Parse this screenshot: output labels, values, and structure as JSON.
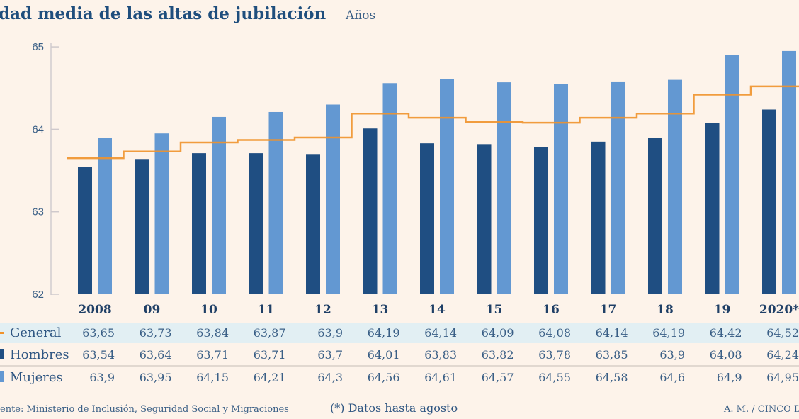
{
  "chart_data": {
    "type": "bar",
    "title": "dad media de las altas de jubilación",
    "subtitle": "Años",
    "categories": [
      "2008",
      "09",
      "10",
      "11",
      "12",
      "13",
      "14",
      "15",
      "16",
      "17",
      "18",
      "19",
      "2020*"
    ],
    "ylim": [
      62,
      65
    ],
    "yticks": [
      "62",
      "63",
      "64",
      "65"
    ],
    "series": [
      {
        "name": "General",
        "type": "step-line",
        "color": "#f0922b",
        "values": [
          63.65,
          63.73,
          63.84,
          63.87,
          63.9,
          64.19,
          64.14,
          64.09,
          64.08,
          64.14,
          64.19,
          64.42,
          64.52
        ],
        "labels": [
          "63,65",
          "63,73",
          "63,84",
          "63,87",
          "63,9",
          "64,19",
          "64,14",
          "64,09",
          "64,08",
          "64,14",
          "64,19",
          "64,42",
          "64,52"
        ]
      },
      {
        "name": "Hombres",
        "type": "bar",
        "color": "#1f4e82",
        "values": [
          63.54,
          63.64,
          63.71,
          63.71,
          63.7,
          64.01,
          63.83,
          63.82,
          63.78,
          63.85,
          63.9,
          64.08,
          64.24
        ],
        "labels": [
          "63,54",
          "63,64",
          "63,71",
          "63,71",
          "63,7",
          "64,01",
          "63,83",
          "63,82",
          "63,78",
          "63,85",
          "63,9",
          "64,08",
          "64,24"
        ]
      },
      {
        "name": "Mujeres",
        "type": "bar",
        "color": "#6398d2",
        "values": [
          63.9,
          63.95,
          64.15,
          64.21,
          64.3,
          64.56,
          64.61,
          64.57,
          64.55,
          64.58,
          64.6,
          64.9,
          64.95
        ],
        "labels": [
          "63,9",
          "63,95",
          "64,15",
          "64,21",
          "64,3",
          "64,56",
          "64,61",
          "64,57",
          "64,55",
          "64,58",
          "64,6",
          "64,9",
          "64,95"
        ]
      }
    ],
    "legend": "table-below"
  },
  "footer": {
    "source": "ente: Ministerio de Inclusión, Seguridad Social y Migraciones",
    "note": "(*) Datos hasta agosto",
    "credit": "A. M. / CINCO DÍ"
  }
}
